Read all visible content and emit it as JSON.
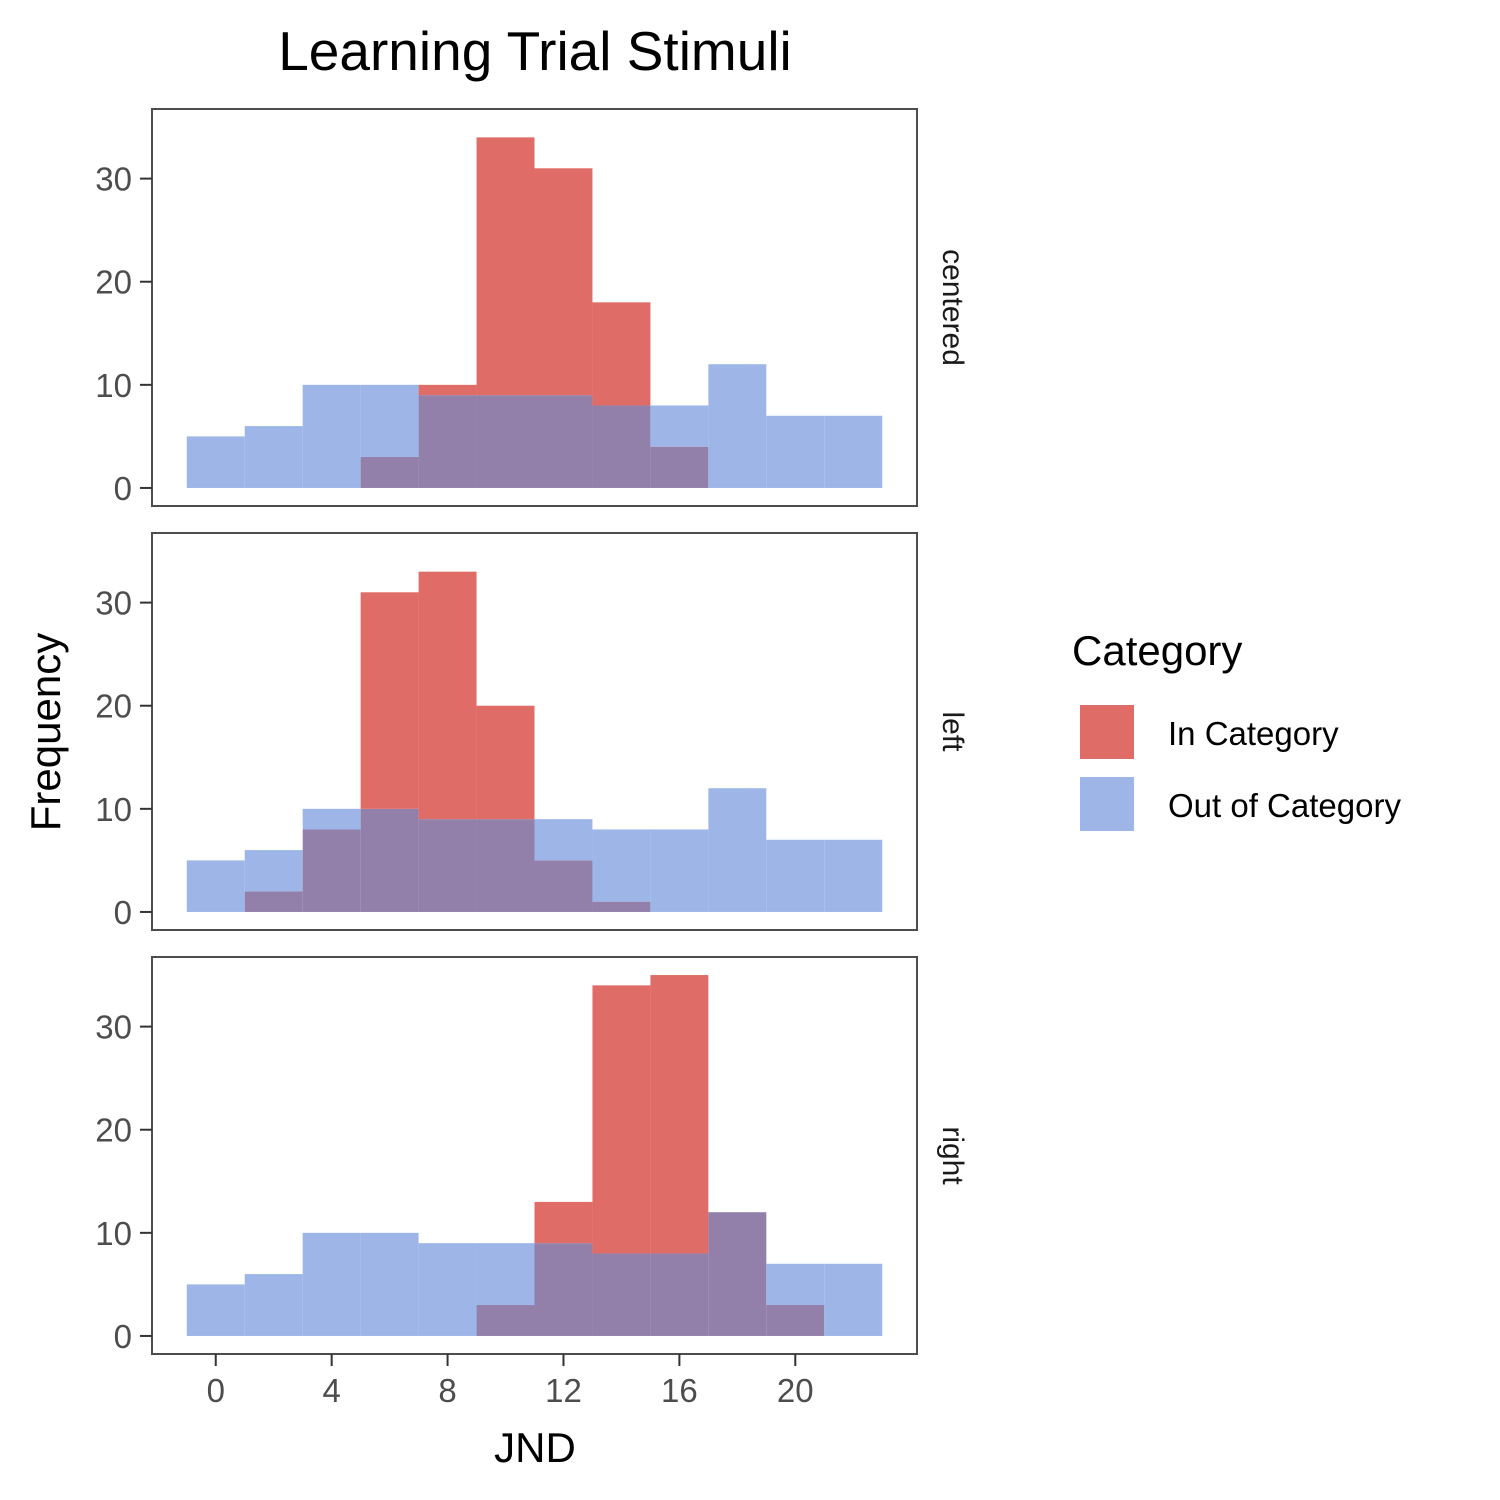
{
  "chart_data": {
    "type": "bar",
    "subtype": "faceted-overlapping-histogram",
    "title": "Learning Trial Stimuli",
    "xlabel": "JND",
    "ylabel": "Frequency",
    "xlim": [
      -2.2,
      24.2
    ],
    "ylim": [
      -1.75,
      36.75
    ],
    "x_ticks": [
      0,
      4,
      8,
      12,
      16,
      20
    ],
    "y_ticks": [
      0,
      10,
      20,
      30
    ],
    "bin_width": 2,
    "bin_starts": [
      -1,
      1,
      3,
      5,
      7,
      9,
      11,
      13,
      15,
      17,
      19,
      21
    ],
    "legend": {
      "title": "Category",
      "position": "right",
      "entries": [
        {
          "label": "In Category",
          "color": "#e06c67"
        },
        {
          "label": "Out of Category",
          "color": "#9db6e7"
        }
      ]
    },
    "overlap_color": "#927faa",
    "facets": [
      {
        "label": "centered",
        "series": [
          {
            "name": "In Category",
            "values": [
              0,
              0,
              0,
              3,
              10,
              34,
              31,
              18,
              4,
              0,
              0,
              0
            ]
          },
          {
            "name": "Out of Category",
            "values": [
              5,
              6,
              10,
              10,
              9,
              9,
              9,
              8,
              8,
              12,
              7,
              7
            ]
          }
        ]
      },
      {
        "label": "left",
        "series": [
          {
            "name": "In Category",
            "values": [
              0,
              2,
              8,
              31,
              33,
              20,
              5,
              1,
              0,
              0,
              0,
              0
            ]
          },
          {
            "name": "Out of Category",
            "values": [
              5,
              6,
              10,
              10,
              9,
              9,
              9,
              8,
              8,
              12,
              7,
              7
            ]
          }
        ]
      },
      {
        "label": "right",
        "series": [
          {
            "name": "In Category",
            "values": [
              0,
              0,
              0,
              0,
              0,
              3,
              13,
              34,
              35,
              12,
              3,
              0
            ]
          },
          {
            "name": "Out of Category",
            "values": [
              5,
              6,
              10,
              10,
              9,
              9,
              9,
              8,
              8,
              12,
              7,
              7
            ]
          }
        ]
      }
    ]
  }
}
